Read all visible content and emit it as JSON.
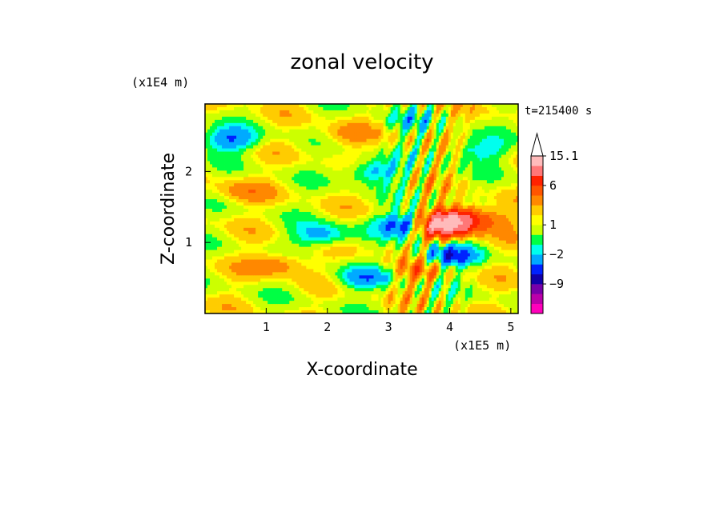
{
  "chart_data": {
    "type": "heatmap",
    "title": "zonal velocity",
    "xlabel": "X-coordinate",
    "ylabel": "Z-coordinate",
    "x_unit": "(x1E5 m)",
    "y_unit": "(x1E4 m)",
    "time_label": "t=215400 s",
    "xlim": [
      0,
      5.12
    ],
    "ylim": [
      0,
      2.95
    ],
    "x_ticks": [
      1,
      2,
      3,
      4,
      5
    ],
    "y_ticks": [
      1,
      2
    ],
    "colorbar": {
      "colors": [
        "#ff00bb",
        "#bb00aa",
        "#7700aa",
        "#1100aa",
        "#0022ff",
        "#00aaff",
        "#00ffee",
        "#00ff44",
        "#ccff00",
        "#ffff00",
        "#ffcc00",
        "#ff8800",
        "#ff5500",
        "#ff2200",
        "#ff7777",
        "#ffbbbb",
        "#ffffff"
      ],
      "labels": [
        {
          "text": "15.1",
          "level": 15.1
        },
        {
          "text": "6",
          "level": 6
        },
        {
          "text": "1",
          "level": 1
        },
        {
          "text": "−2",
          "level": -2
        },
        {
          "text": "−9",
          "level": -9
        }
      ]
    },
    "features": [
      {
        "x": 3.85,
        "z": 1.22,
        "value": 10
      },
      {
        "x": 4.15,
        "z": 1.35,
        "value": 7
      },
      {
        "x": 3.3,
        "z": 1.25,
        "value": -7
      },
      {
        "x": 4.0,
        "z": 0.8,
        "value": -6
      },
      {
        "x": 0.4,
        "z": 2.45,
        "value": -5
      },
      {
        "x": 2.75,
        "z": 2.0,
        "value": -4
      },
      {
        "x": 1.9,
        "z": 1.1,
        "value": -4
      },
      {
        "x": 2.6,
        "z": 0.5,
        "value": -4
      },
      {
        "x": 4.5,
        "z": 2.3,
        "value": -3
      },
      {
        "x": 1.2,
        "z": 0.7,
        "value": 3
      },
      {
        "x": 0.6,
        "z": 1.7,
        "value": 2
      },
      {
        "x": 2.3,
        "z": 2.5,
        "value": 2
      },
      {
        "x": 3.5,
        "z": 0.6,
        "value": 3
      },
      {
        "x": 4.7,
        "z": 1.3,
        "value": 2
      },
      {
        "x": 3.3,
        "z": 2.7,
        "value": -2
      }
    ]
  }
}
